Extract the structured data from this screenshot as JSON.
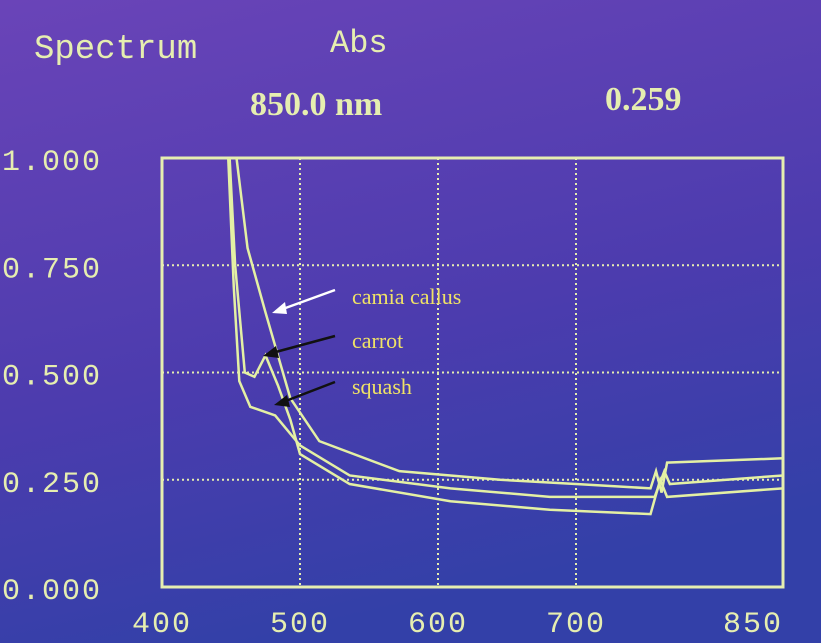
{
  "chart_data": {
    "type": "line",
    "title": "Spectrum",
    "y_label": "Abs",
    "readout": [
      "850.0 nm",
      "0.259"
    ],
    "xlim": [
      400,
      850
    ],
    "xticks": [
      400,
      500,
      600,
      700,
      850
    ],
    "ylim": [
      0,
      1
    ],
    "yticks": [
      {
        "value": 0,
        "label": "0.000"
      },
      {
        "value": 0.25,
        "label": "0.250"
      },
      {
        "value": 0.5,
        "label": "0.500"
      },
      {
        "value": 0.75,
        "label": "0.750"
      },
      {
        "value": 1,
        "label": "1.000"
      }
    ],
    "grid": true,
    "series": [
      {
        "name": "camia callus",
        "color": "#e4f0a4",
        "x": [
          454,
          462,
          475,
          493,
          514,
          572,
          645,
          700,
          754,
          758,
          762,
          766,
          850
        ],
        "values": [
          1.0,
          0.79,
          0.64,
          0.44,
          0.34,
          0.27,
          0.25,
          0.24,
          0.23,
          0.27,
          0.22,
          0.29,
          0.3
        ]
      },
      {
        "name": "carrot",
        "color": "#e4f0a4",
        "x": [
          449,
          453,
          460,
          467,
          475,
          484,
          493,
          500,
          536,
          609,
          681,
          754,
          761,
          766,
          850
        ],
        "values": [
          1.0,
          0.75,
          0.5,
          0.49,
          0.54,
          0.47,
          0.39,
          0.31,
          0.24,
          0.2,
          0.18,
          0.17,
          0.25,
          0.21,
          0.23
        ]
      },
      {
        "name": "squash",
        "color": "#e4f0a4",
        "x": [
          448,
          452,
          456,
          464,
          482,
          500,
          536,
          609,
          681,
          757,
          764,
          768,
          850
        ],
        "values": [
          1.0,
          0.7,
          0.48,
          0.42,
          0.4,
          0.33,
          0.26,
          0.23,
          0.21,
          0.21,
          0.27,
          0.24,
          0.26
        ]
      }
    ]
  }
}
